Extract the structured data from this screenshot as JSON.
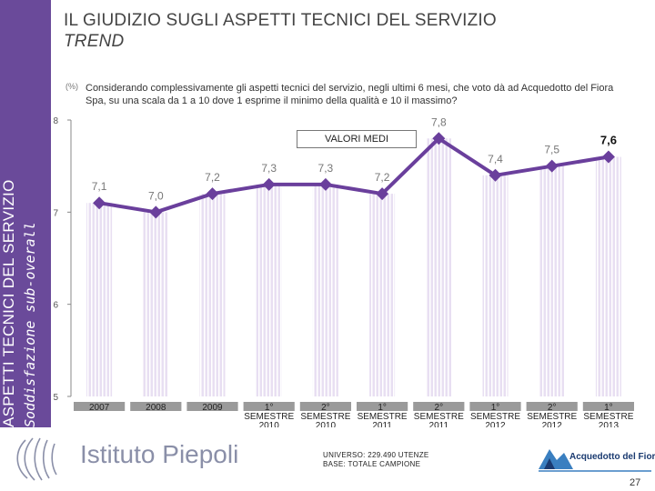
{
  "side": {
    "line1": "ASPETTI TECNICI DEL SERVIZIO",
    "line2": "Soddisfazione sub-overall"
  },
  "title": {
    "line1": "IL GIUDIZIO SUGLI ASPETTI TECNICI DEL SERVIZIO",
    "line2": "TREND"
  },
  "question": {
    "icon": "(%)",
    "text": "Considerando complessivamente gli aspetti tecnici del servizio, negli ultimi 6 mesi, che voto dà ad Acquedotto del Fiora Spa, su una scala da 1 a 10 dove 1 esprime il minimo della qualità e 10 il massimo?"
  },
  "chart_data": {
    "type": "bar",
    "title": "",
    "legend": "VALORI MEDI",
    "categories": [
      [
        "2007"
      ],
      [
        "2008"
      ],
      [
        "2009"
      ],
      [
        "1°",
        "SEMESTRE",
        "2010"
      ],
      [
        "2°",
        "SEMESTRE",
        "2010"
      ],
      [
        "1°",
        "SEMESTRE",
        "2011"
      ],
      [
        "2°",
        "SEMESTRE",
        "2011"
      ],
      [
        "1°",
        "SEMESTRE",
        "2012"
      ],
      [
        "2°",
        "SEMESTRE",
        "2012"
      ],
      [
        "1°",
        "SEMESTRE",
        "2013"
      ]
    ],
    "values": [
      7.1,
      7.0,
      7.2,
      7.3,
      7.3,
      7.2,
      7.8,
      7.4,
      7.5,
      7.6
    ],
    "labels": [
      "7,1",
      "7,0",
      "7,2",
      "7,3",
      "7,3",
      "7,2",
      "7,8",
      "7,4",
      "7,5",
      "7,6"
    ],
    "highlight_last_label": true,
    "ylim": [
      5,
      8
    ],
    "yticks": [
      "5",
      "6",
      "7",
      "8"
    ],
    "xlabel": "",
    "ylabel": "",
    "colors": {
      "bar": "#e8dff2",
      "bar_stripe": "#ffffff",
      "line": "#6a3f9c",
      "marker": "#6a3f9c",
      "axis_label_bg": "#9a9a9a"
    }
  },
  "footer": {
    "logo_text": "Istituto Piepoli",
    "universe_line1": "UNIVERSO: 229.490 UTENZE",
    "universe_line2": "BASE: TOTALE CAMPIONE",
    "aq_logo_text": "Acquedotto del Fiora",
    "page_number": "27"
  }
}
